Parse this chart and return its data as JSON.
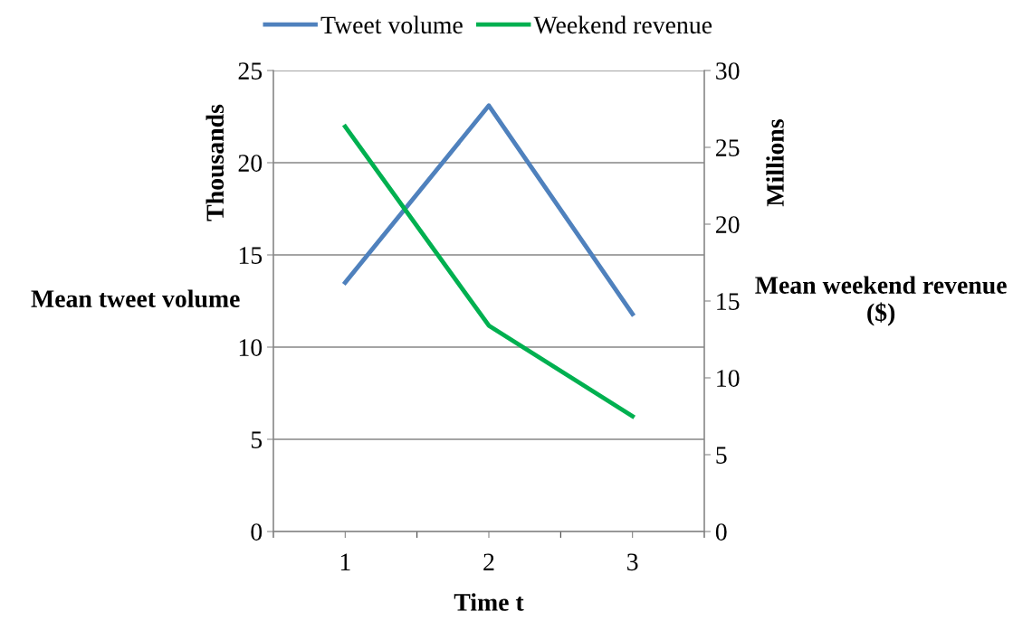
{
  "chart_data": {
    "type": "line",
    "categories": [
      "1",
      "2",
      "3"
    ],
    "series": [
      {
        "name": "Tweet volume",
        "color": "#4f81bd",
        "values": [
          13.5,
          23.1,
          11.8
        ]
      },
      {
        "name": "Weekend revenue",
        "color": "#00b050",
        "values": [
          26.35,
          13.4,
          7.5
        ],
        "axis": "y2"
      }
    ],
    "xlabel": "Time t",
    "ylabel": "Mean tweet volume",
    "y2label": "Mean weekend revenue ($)",
    "annotations": [
      "Thousands",
      "Millions"
    ],
    "ylim": [
      0,
      25
    ],
    "yticks": [
      0,
      5,
      10,
      15,
      20,
      25
    ],
    "y2lim": [
      0,
      30
    ],
    "y2ticks": [
      0,
      5,
      10,
      15,
      20,
      25,
      30
    ],
    "grid": "y",
    "legend": "top",
    "marker": "none",
    "line_style": "solid"
  }
}
